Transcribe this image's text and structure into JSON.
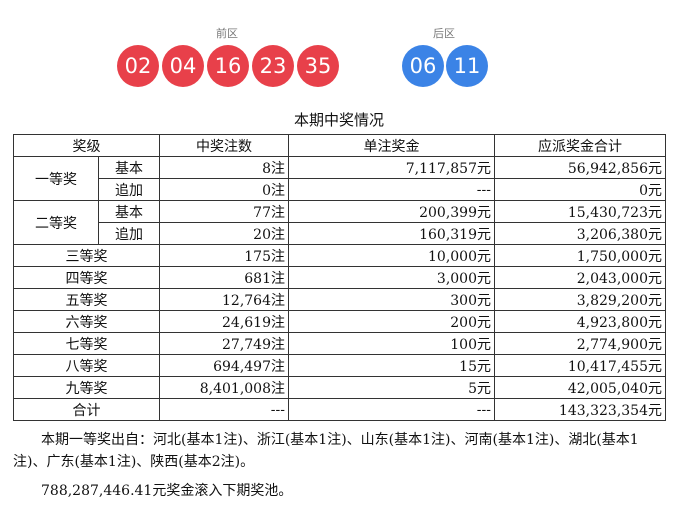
{
  "draw": {
    "front_label": "前区",
    "back_label": "后区",
    "front_numbers": [
      "02",
      "04",
      "16",
      "23",
      "35"
    ],
    "back_numbers": [
      "06",
      "11"
    ],
    "colors": {
      "front": "#e8404a",
      "back": "#3b83e6"
    }
  },
  "table": {
    "title": "本期中奖情况",
    "headers": [
      "奖级",
      "中奖注数",
      "单注奖金",
      "应派奖金合计"
    ],
    "rows": [
      {
        "level": "一等奖",
        "sub": "基本",
        "count": "8注",
        "prize": "7,117,857元",
        "total": "56,942,856元"
      },
      {
        "level": "一等奖",
        "sub": "追加",
        "count": "0注",
        "prize": "---",
        "total": "0元"
      },
      {
        "level": "二等奖",
        "sub": "基本",
        "count": "77注",
        "prize": "200,399元",
        "total": "15,430,723元"
      },
      {
        "level": "二等奖",
        "sub": "追加",
        "count": "20注",
        "prize": "160,319元",
        "total": "3,206,380元"
      },
      {
        "level": "三等奖",
        "count": "175注",
        "prize": "10,000元",
        "total": "1,750,000元"
      },
      {
        "level": "四等奖",
        "count": "681注",
        "prize": "3,000元",
        "total": "2,043,000元"
      },
      {
        "level": "五等奖",
        "count": "12,764注",
        "prize": "300元",
        "total": "3,829,200元"
      },
      {
        "level": "六等奖",
        "count": "24,619注",
        "prize": "200元",
        "total": "4,923,800元"
      },
      {
        "level": "七等奖",
        "count": "27,749注",
        "prize": "100元",
        "total": "2,774,900元"
      },
      {
        "level": "八等奖",
        "count": "694,497注",
        "prize": "15元",
        "total": "10,417,455元"
      },
      {
        "level": "九等奖",
        "count": "8,401,008注",
        "prize": "5元",
        "total": "42,005,040元"
      },
      {
        "level": "合计",
        "count": "---",
        "prize": "---",
        "total": "143,323,354元"
      }
    ]
  },
  "notes": {
    "winners_origin": "本期一等奖出自：河北(基本1注)、浙江(基本1注)、山东(基本1注)、河南(基本1注)、湖北(基本1注)、广东(基本1注)、陕西(基本2注)。",
    "rollover": "788,287,446.41元奖金滚入下期奖池。"
  }
}
